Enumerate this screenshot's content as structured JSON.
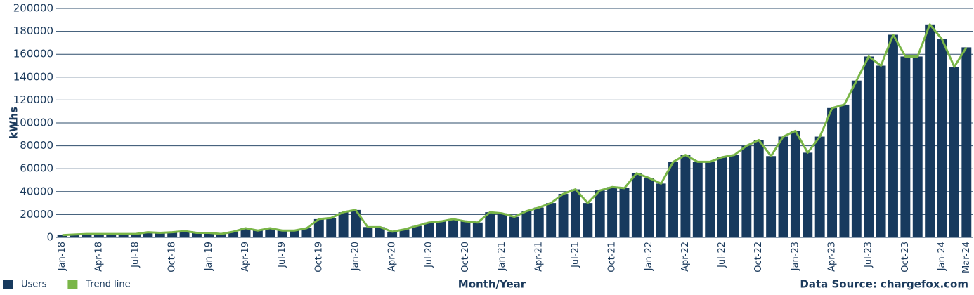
{
  "chart_data": {
    "type": "bar-line",
    "y_label": "kWhs",
    "x_label": "Month/Year",
    "source": "Data Source:  chargefox.com",
    "categories": [
      "Jan-18",
      null,
      null,
      "Apr-18",
      null,
      null,
      "Jul-18",
      null,
      null,
      "Oct-18",
      null,
      null,
      "Jan-19",
      null,
      null,
      "Apr-19",
      null,
      null,
      "Jul-19",
      null,
      null,
      "Oct-19",
      null,
      null,
      "Jan-20",
      null,
      null,
      "Apr-20",
      null,
      null,
      "Jul-20",
      null,
      null,
      "Oct-20",
      null,
      null,
      "Jan-21",
      null,
      null,
      "Apr-21",
      null,
      null,
      "Jul-21",
      null,
      null,
      "Oct-21",
      null,
      null,
      "Jan-22",
      null,
      null,
      "Apr-22",
      null,
      null,
      "Jul-22",
      null,
      null,
      "Oct-22",
      null,
      null,
      "Jan-23",
      null,
      null,
      "Apr-23",
      null,
      null,
      "Jul-23",
      null,
      null,
      "Oct-23",
      null,
      null,
      "Jan-24",
      null,
      "Mar-24"
    ],
    "series": [
      {
        "name": "Users",
        "color": "#173a5e",
        "kind": "bar",
        "values": [
          2000,
          2500,
          3000,
          3000,
          3000,
          3000,
          3000,
          4500,
          4000,
          4500,
          5500,
          4000,
          4000,
          3000,
          5000,
          8000,
          6000,
          8000,
          6000,
          6000,
          8000,
          16000,
          17000,
          22000,
          24000,
          9000,
          9000,
          5000,
          7000,
          10000,
          13000,
          14000,
          16000,
          14000,
          13000,
          22000,
          21000,
          18000,
          23000,
          26000,
          30000,
          38000,
          42000,
          30000,
          41000,
          44000,
          43000,
          56000,
          52000,
          47000,
          66000,
          72000,
          66000,
          66000,
          70000,
          72000,
          80000,
          85000,
          71000,
          88000,
          93000,
          74000,
          88000,
          113000,
          116000,
          137000,
          158000,
          150000,
          177000,
          158000,
          158000,
          186000,
          173000,
          149000,
          166000
        ]
      },
      {
        "name": "Trend line",
        "color": "#7ab648",
        "kind": "line",
        "values": [
          2000,
          2500,
          3000,
          3000,
          3000,
          3000,
          3000,
          4500,
          4000,
          4500,
          5500,
          4000,
          4000,
          3000,
          5000,
          8000,
          6000,
          8000,
          6000,
          6000,
          8000,
          16000,
          17000,
          22000,
          24000,
          9000,
          9000,
          5000,
          7000,
          10000,
          13000,
          14000,
          16000,
          14000,
          13000,
          22000,
          21000,
          18000,
          23000,
          26000,
          30000,
          38000,
          42000,
          30000,
          41000,
          44000,
          43000,
          56000,
          52000,
          47000,
          66000,
          72000,
          66000,
          66000,
          70000,
          72000,
          80000,
          85000,
          71000,
          88000,
          93000,
          74000,
          88000,
          113000,
          116000,
          137000,
          158000,
          150000,
          177000,
          158000,
          158000,
          186000,
          173000,
          149000,
          166000
        ]
      }
    ],
    "ylim": [
      0,
      200000
    ],
    "yticks": [
      0,
      20000,
      40000,
      60000,
      80000,
      100000,
      120000,
      140000,
      160000,
      180000,
      200000
    ],
    "grid": true
  }
}
